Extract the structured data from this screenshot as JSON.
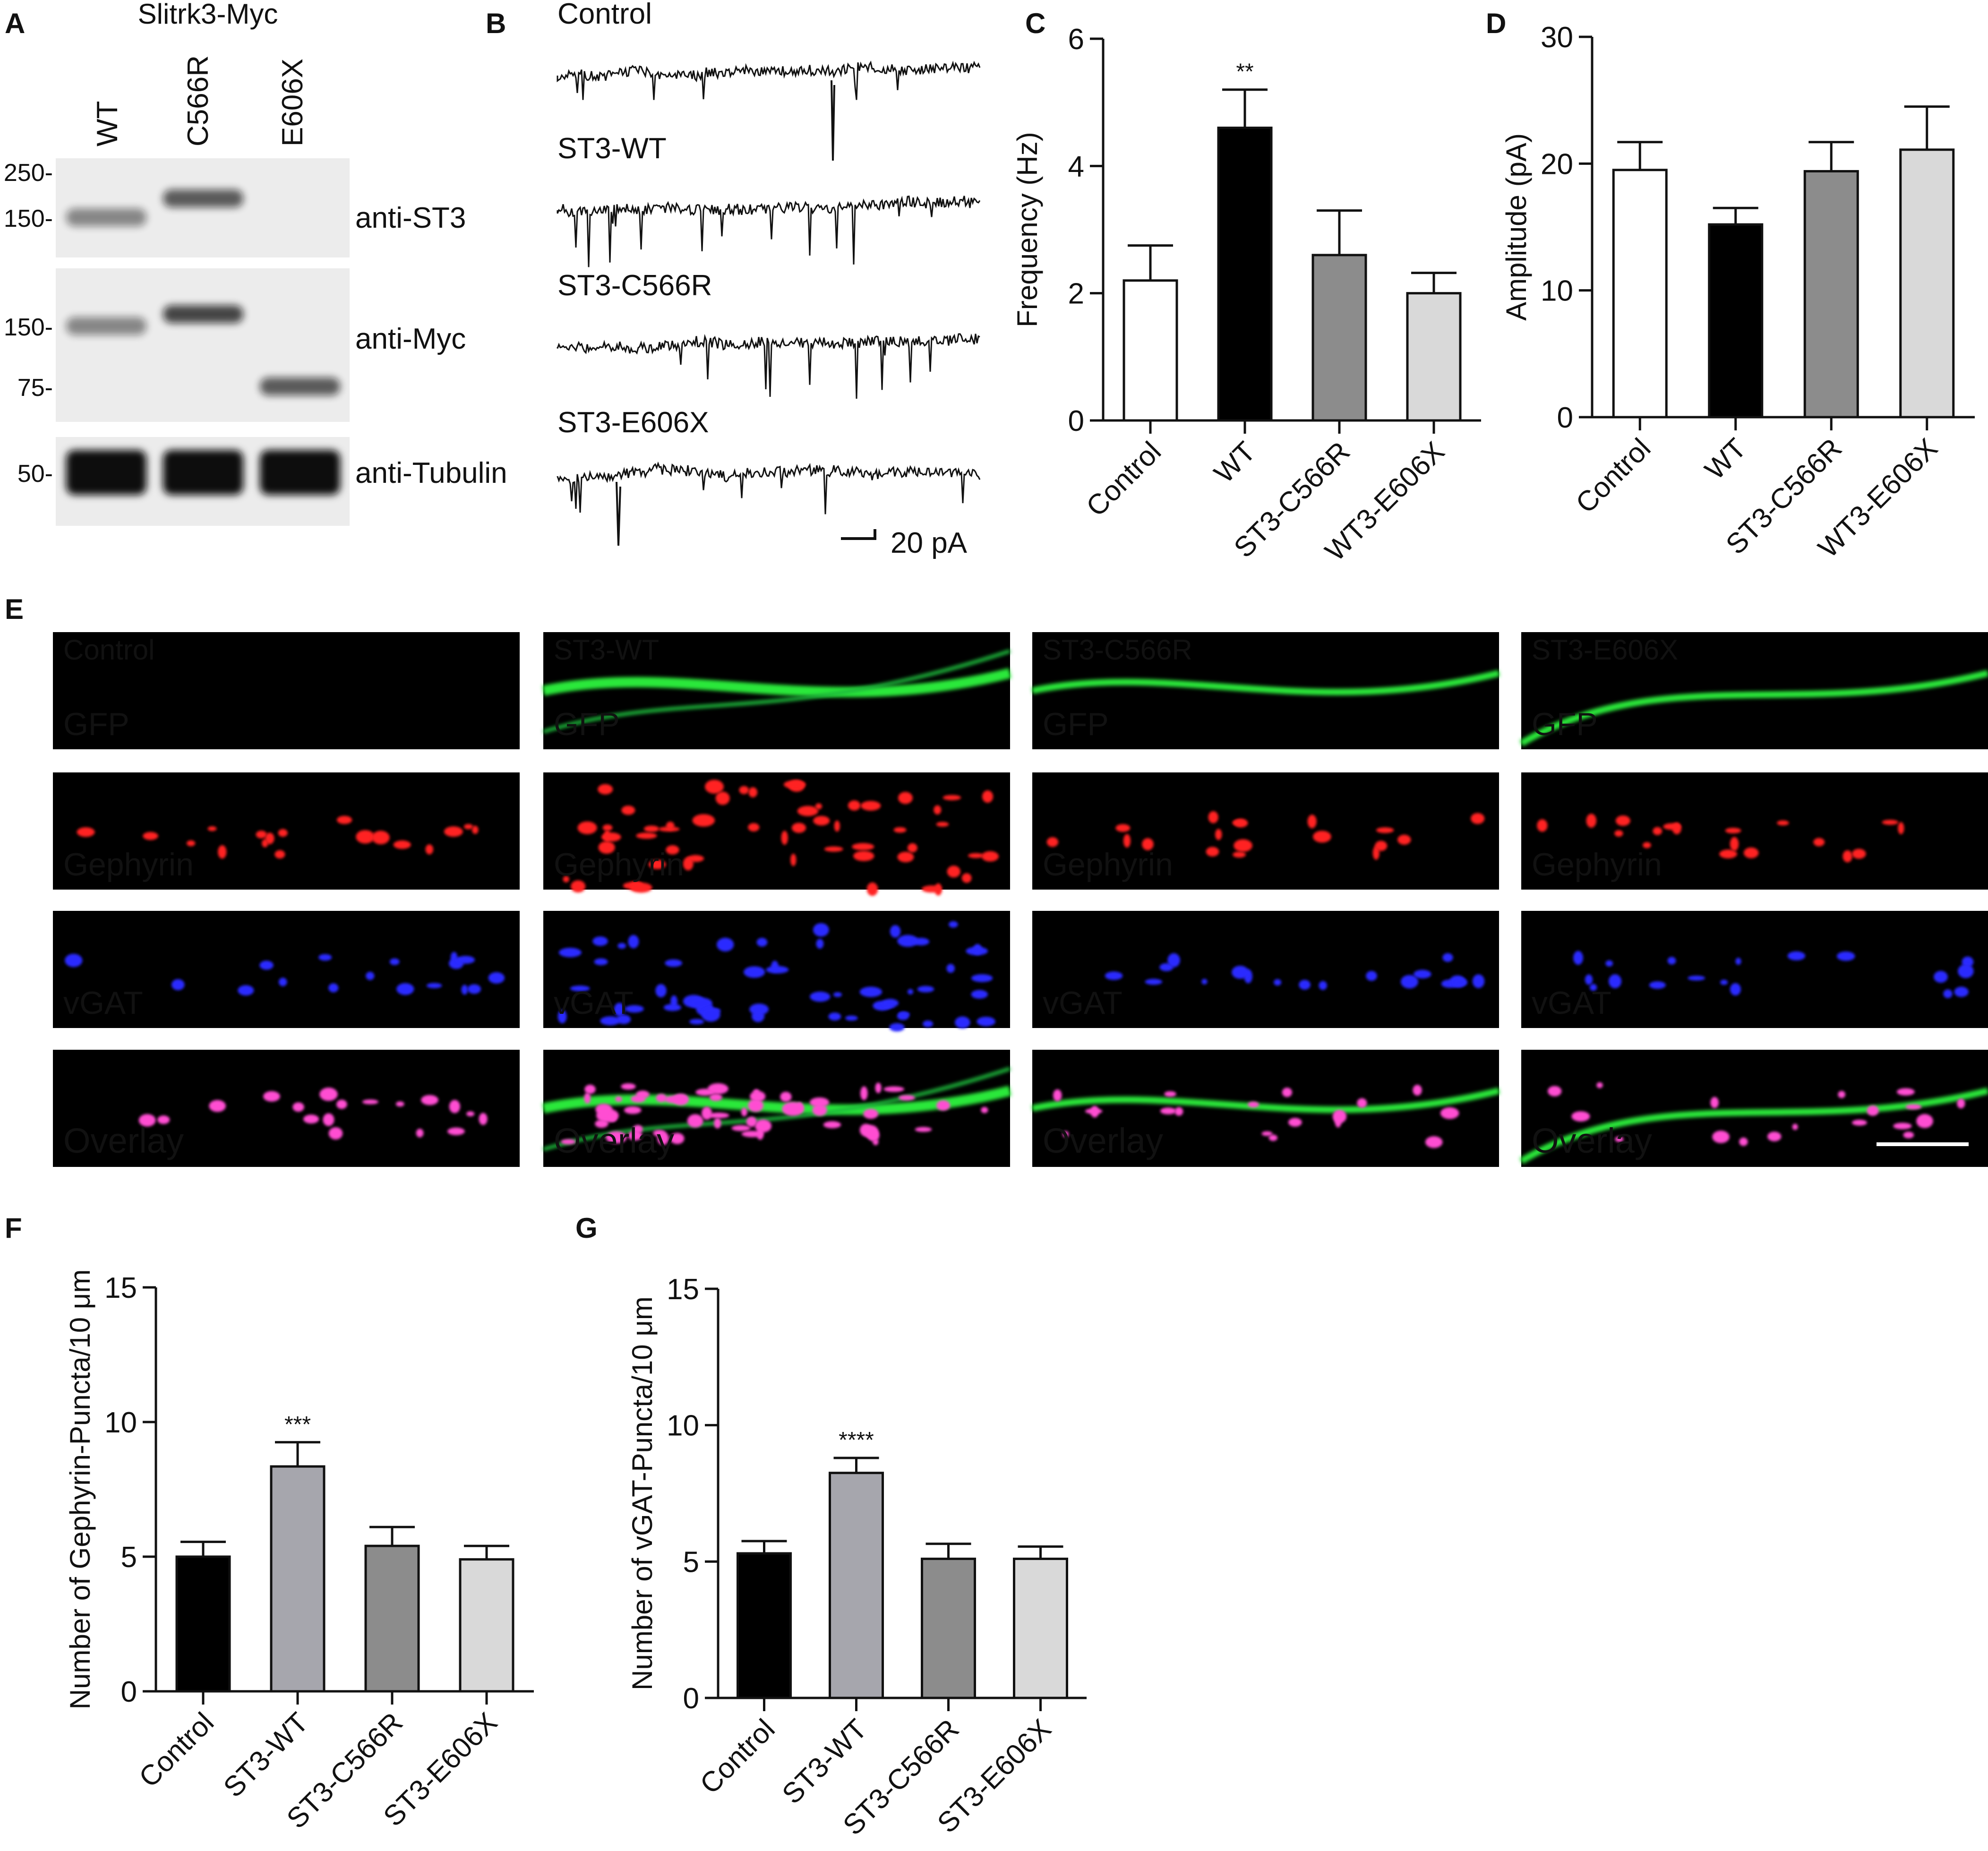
{
  "panels": {
    "A": {
      "letter": "A",
      "header": "Slitrk3-Myc",
      "lanes": [
        "WT",
        "C566R",
        "E606X"
      ],
      "blots": [
        {
          "label": "anti-ST3",
          "markers": [
            "250-",
            "150-"
          ],
          "bands": [
            0.45,
            0.65,
            0.0
          ],
          "band_mw": [
            150,
            175,
            0
          ]
        },
        {
          "label": "anti-Myc",
          "markers": [
            "150-",
            "75-"
          ],
          "bands": [
            0.45,
            0.75,
            0.65
          ],
          "band_mw": [
            150,
            170,
            70
          ]
        },
        {
          "label": "anti-Tubulin",
          "markers": [
            "50-"
          ],
          "bands": [
            1.0,
            1.0,
            1.0
          ],
          "band_mw": [
            50,
            50,
            50
          ]
        }
      ]
    },
    "B": {
      "letter": "B",
      "traces": [
        "Control",
        "ST3-WT",
        "ST3-C566R",
        "ST3-E606X"
      ],
      "scalebar_label": "20 pA"
    },
    "E": {
      "letter": "E",
      "columns": [
        "Control",
        "ST3-WT",
        "ST3-C566R",
        "ST3-E606X"
      ],
      "rows": [
        {
          "label": "GFP",
          "color": "#1fa349"
        },
        {
          "label": "Gephyrin",
          "color": "#e81c1c"
        },
        {
          "label": "vGAT",
          "color": "#2a2ae8"
        },
        {
          "label": "Overlay",
          "color": "#ffffff"
        }
      ]
    }
  },
  "chart_data": [
    {
      "id": "C",
      "letter": "C",
      "type": "bar",
      "categories": [
        "Control",
        "WT",
        "ST3-C566R",
        "WT3-E606X"
      ],
      "values": [
        2.2,
        4.6,
        2.6,
        2.0
      ],
      "errors": [
        0.55,
        0.6,
        0.7,
        0.32
      ],
      "colors": [
        "#ffffff",
        "#000000",
        "#8c8c8c",
        "#d9d9d9"
      ],
      "ylabel": "Frequency (Hz)",
      "ylim": [
        0,
        6
      ],
      "yticks": [
        0,
        2,
        4,
        6
      ],
      "annotations": [
        {
          "index": 1,
          "text": "**"
        }
      ]
    },
    {
      "id": "D",
      "letter": "D",
      "type": "bar",
      "categories": [
        "Control",
        "WT",
        "ST3-C566R",
        "WT3-E606X"
      ],
      "values": [
        19.5,
        15.2,
        19.4,
        21.1
      ],
      "errors": [
        2.2,
        1.3,
        2.3,
        3.4
      ],
      "colors": [
        "#ffffff",
        "#000000",
        "#8c8c8c",
        "#d9d9d9"
      ],
      "ylabel": "Amplitude (pA)",
      "ylim": [
        0,
        30
      ],
      "yticks": [
        0,
        10,
        20,
        30
      ],
      "annotations": []
    },
    {
      "id": "F",
      "letter": "F",
      "type": "bar",
      "categories": [
        "Control",
        "ST3-WT",
        "ST3-C566R",
        "ST3-E606X"
      ],
      "values": [
        5.0,
        8.35,
        5.4,
        4.9
      ],
      "errors": [
        0.55,
        0.9,
        0.7,
        0.5
      ],
      "colors": [
        "#000000",
        "#a6a6ad",
        "#8c8c8c",
        "#d9d9d9"
      ],
      "ylabel": "Number of Gephyrin-Puncta/10 μm",
      "ylim": [
        0,
        15
      ],
      "yticks": [
        0,
        5,
        10,
        15
      ],
      "annotations": [
        {
          "index": 1,
          "text": "***"
        }
      ]
    },
    {
      "id": "G",
      "letter": "G",
      "type": "bar",
      "categories": [
        "Control",
        "ST3-WT",
        "ST3-C566R",
        "ST3-E606X"
      ],
      "values": [
        5.3,
        8.25,
        5.1,
        5.1
      ],
      "errors": [
        0.45,
        0.55,
        0.55,
        0.45
      ],
      "colors": [
        "#000000",
        "#a6a6ad",
        "#8c8c8c",
        "#d9d9d9"
      ],
      "ylabel": "Number of vGAT-Puncta/10 μm",
      "ylim": [
        0,
        15
      ],
      "yticks": [
        0,
        5,
        10,
        15
      ],
      "annotations": [
        {
          "index": 1,
          "text": "****"
        }
      ]
    }
  ]
}
